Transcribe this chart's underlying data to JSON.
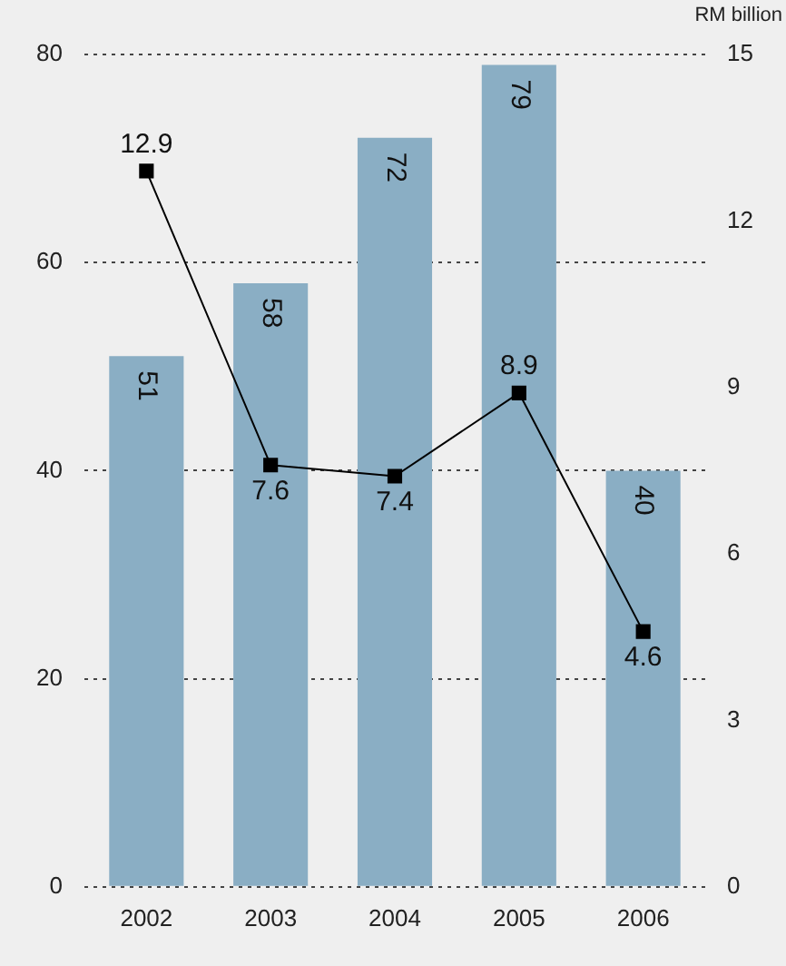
{
  "chart_data": {
    "type": "bar",
    "y2label": "RM billion",
    "categories": [
      "2002",
      "2003",
      "2004",
      "2005",
      "2006"
    ],
    "series": [
      {
        "color": "#8aaec4",
        "values": [
          51,
          58,
          72,
          79,
          40
        ]
      },
      {
        "type": "line",
        "axis": "y2",
        "color": "#000000",
        "values": [
          12.9,
          7.6,
          7.4,
          8.9,
          4.6
        ],
        "marker": "square",
        "line_style": "solid"
      }
    ],
    "ylim": [
      0,
      80
    ],
    "yticks": [
      0,
      20,
      40,
      60,
      80
    ],
    "y2lim": [
      0,
      15
    ],
    "y2ticks": [
      0,
      3,
      6,
      9,
      12,
      15
    ],
    "grid": "y",
    "data_labels": true,
    "legend": false
  }
}
